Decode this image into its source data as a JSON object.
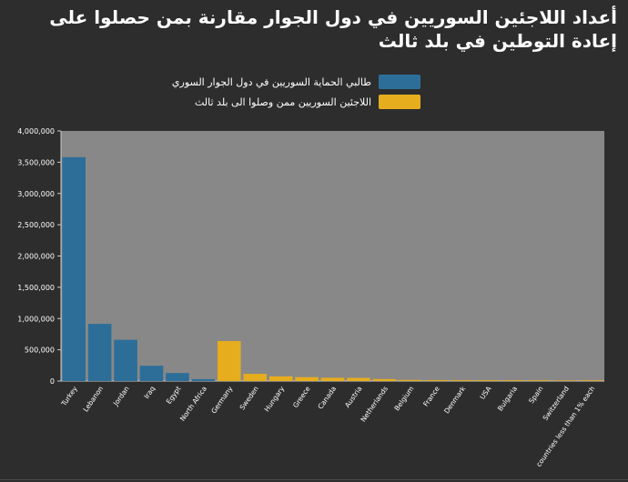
{
  "title": "أعداد اللاجئين السوريين في دول الجوار مقارنة بمن حصلوا على إعادة التوطين في بلد ثالث",
  "colors": {
    "background": "#2d2d2d",
    "plot_area": "#888888",
    "series_blue": "#2d6e99",
    "series_yellow": "#e6ad1e"
  },
  "chart_data": {
    "type": "bar",
    "title": "أعداد اللاجئين السوريين في دول الجوار مقارنة بمن حصلوا على إعادة التوطين في بلد ثالث",
    "categories": [
      "Turkey",
      "Lebanon",
      "Jordan",
      "Iraq",
      "Egypt",
      "North Africa",
      "Germany",
      "Sweden",
      "Hungary",
      "Greece",
      "Canada",
      "Austria",
      "Netherlands",
      "Belgium",
      "France",
      "Denmark",
      "USA",
      "Bulgaria",
      "Spain",
      "Switzerland",
      "countries less than 1% each"
    ],
    "series": [
      {
        "name": "طالبي الحماية السوريين في دول الجوار السوري",
        "color": "#2d6e99",
        "values": [
          3580000,
          915000,
          660000,
          245000,
          128000,
          30000,
          null,
          null,
          null,
          null,
          null,
          null,
          null,
          null,
          null,
          null,
          null,
          null,
          null,
          null,
          null
        ]
      },
      {
        "name": "اللاجئين السوريين ممن وصلوا الى بلد ثالث",
        "color": "#e6ad1e",
        "values": [
          null,
          null,
          null,
          null,
          null,
          null,
          640000,
          115000,
          75000,
          62000,
          53000,
          50000,
          32000,
          18000,
          15000,
          14000,
          14000,
          13000,
          12000,
          10000,
          12000
        ]
      }
    ],
    "ylim": [
      0,
      4000000
    ],
    "yticks": [
      "0",
      "500,000",
      "1,000,000",
      "1,500,000",
      "2,000,000",
      "2,500,000",
      "3,000,000",
      "3,500,000",
      "4,000,000"
    ],
    "grid": false,
    "legend_position": "top-right"
  }
}
